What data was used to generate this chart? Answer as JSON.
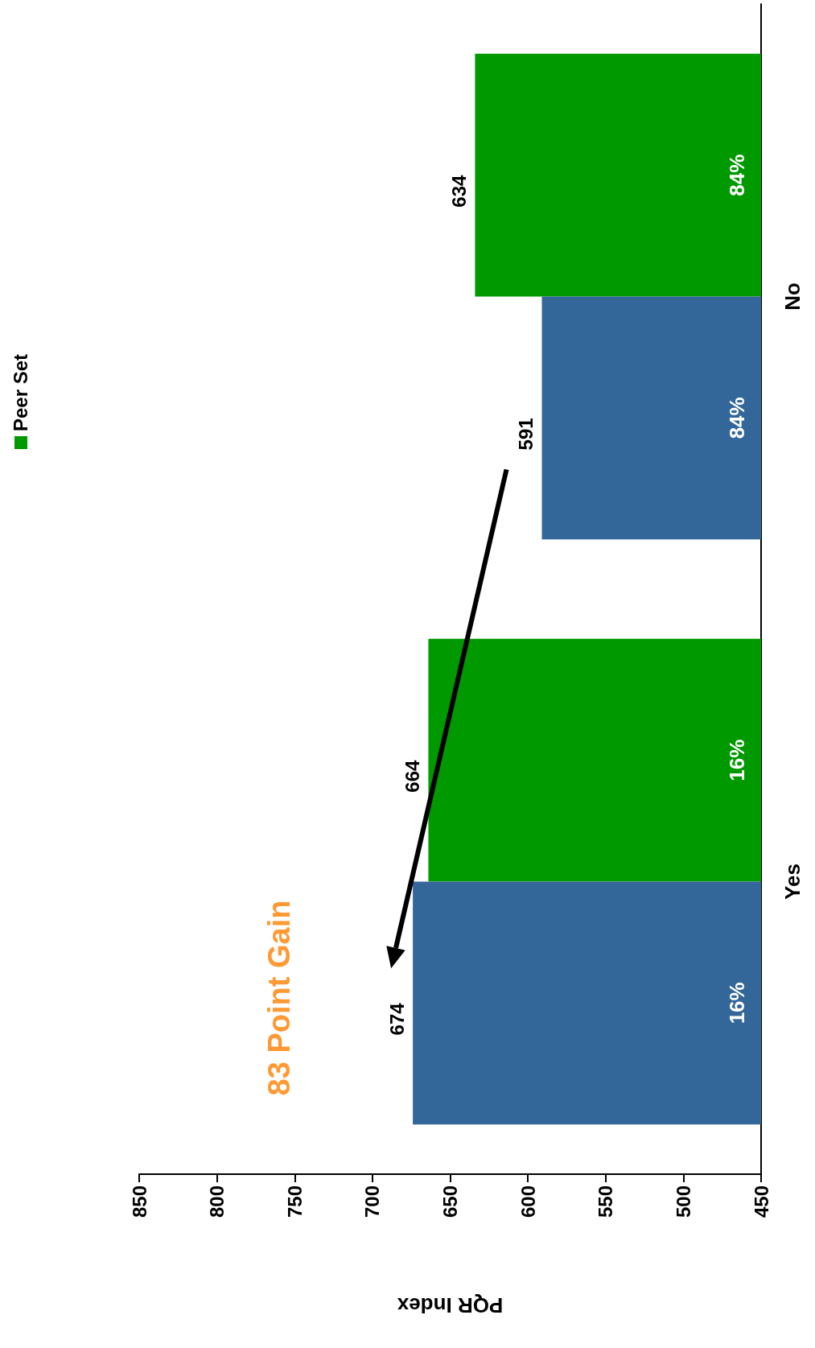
{
  "chart_data": {
    "type": "bar",
    "orientation": "horizontal",
    "xlabel": "PQR Index",
    "categories": [
      "No",
      "Yes"
    ],
    "series": [
      {
        "name": "Peer Set",
        "color": "#009900",
        "values": [
          634,
          664
        ]
      },
      {
        "color": "#336699",
        "values": [
          591,
          674
        ]
      }
    ],
    "xlim": [
      850,
      450
    ],
    "xticks": [
      850,
      800,
      750,
      700,
      650,
      600,
      550,
      500,
      450
    ],
    "grid": false,
    "legend": "left",
    "data_labels": true,
    "annotations": [
      "83 Point Gain",
      "84%",
      "84%",
      "16%",
      "16%"
    ]
  }
}
